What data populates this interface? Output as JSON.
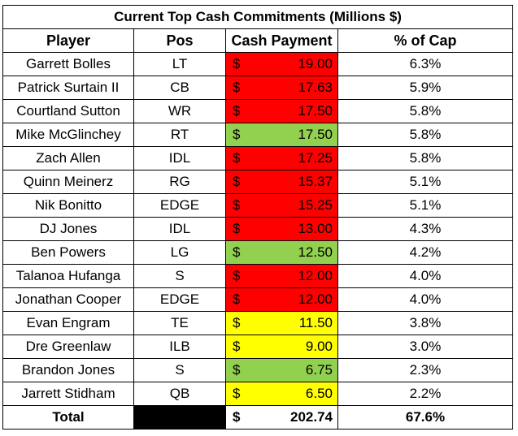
{
  "title": "Current Top Cash Commitments (Millions $)",
  "headers": {
    "player": "Player",
    "pos": "Pos",
    "cash": "Cash Payment",
    "cap": "% of Cap"
  },
  "currency": "$",
  "colors": {
    "red": "#ff0000",
    "green": "#92d050",
    "yellow": "#ffff00"
  },
  "rows": [
    {
      "player": "Garrett Bolles",
      "pos": "LT",
      "cash": "19.00",
      "cap": "6.3%",
      "color": "#ff0000"
    },
    {
      "player": "Patrick Surtain II",
      "pos": "CB",
      "cash": "17.63",
      "cap": "5.9%",
      "color": "#ff0000"
    },
    {
      "player": "Courtland Sutton",
      "pos": "WR",
      "cash": "17.50",
      "cap": "5.8%",
      "color": "#ff0000"
    },
    {
      "player": "Mike McGlinchey",
      "pos": "RT",
      "cash": "17.50",
      "cap": "5.8%",
      "color": "#92d050"
    },
    {
      "player": "Zach Allen",
      "pos": "IDL",
      "cash": "17.25",
      "cap": "5.8%",
      "color": "#ff0000"
    },
    {
      "player": "Quinn Meinerz",
      "pos": "RG",
      "cash": "15.37",
      "cap": "5.1%",
      "color": "#ff0000"
    },
    {
      "player": "Nik Bonitto",
      "pos": "EDGE",
      "cash": "15.25",
      "cap": "5.1%",
      "color": "#ff0000"
    },
    {
      "player": "DJ Jones",
      "pos": "IDL",
      "cash": "13.00",
      "cap": "4.3%",
      "color": "#ff0000"
    },
    {
      "player": "Ben Powers",
      "pos": "LG",
      "cash": "12.50",
      "cap": "4.2%",
      "color": "#92d050"
    },
    {
      "player": "Talanoa Hufanga",
      "pos": "S",
      "cash": "12.00",
      "cap": "4.0%",
      "color": "#ff0000"
    },
    {
      "player": "Jonathan Cooper",
      "pos": "EDGE",
      "cash": "12.00",
      "cap": "4.0%",
      "color": "#ff0000"
    },
    {
      "player": "Evan Engram",
      "pos": "TE",
      "cash": "11.50",
      "cap": "3.8%",
      "color": "#ffff00"
    },
    {
      "player": "Dre Greenlaw",
      "pos": "ILB",
      "cash": "9.00",
      "cap": "3.0%",
      "color": "#ffff00"
    },
    {
      "player": "Brandon Jones",
      "pos": "S",
      "cash": "6.75",
      "cap": "2.3%",
      "color": "#92d050"
    },
    {
      "player": "Jarrett Stidham",
      "pos": "QB",
      "cash": "6.50",
      "cap": "2.2%",
      "color": "#ffff00"
    }
  ],
  "total": {
    "label": "Total",
    "cash": "202.74",
    "cap": "67.6%"
  }
}
